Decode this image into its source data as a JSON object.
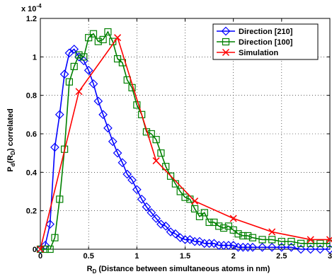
{
  "chart_data": {
    "type": "line",
    "title": "",
    "xlabel_main": "R",
    "xlabel_sub": "D",
    "xlabel_rest": " (Distance between simultaneous atoms in nm)",
    "ylabel_main": "P",
    "ylabel_sub1": "d",
    "ylabel_mid": "(R",
    "ylabel_sub2": "D",
    "ylabel_rest": ") correlated",
    "exponent_base": "x 10",
    "exponent_power": "-4",
    "xlim": [
      0,
      3
    ],
    "ylim": [
      0,
      1.2
    ],
    "xticks": [
      0,
      0.5,
      1,
      1.5,
      2,
      2.5,
      3
    ],
    "xtick_labels": [
      "0",
      "0.5",
      "1",
      "1.5",
      "2",
      "2.5",
      "3"
    ],
    "yticks": [
      0,
      0.2,
      0.4,
      0.6,
      0.8,
      1,
      1.2
    ],
    "ytick_labels": [
      "0",
      "0.2",
      "0.4",
      "0.6",
      "0.8",
      "1",
      "1.2"
    ],
    "grid": true,
    "legend_position": "top-right",
    "series": [
      {
        "name": "Direction [210]",
        "color": "#0000ff",
        "marker": "diamond",
        "x": [
          0.0,
          0.05,
          0.1,
          0.15,
          0.2,
          0.25,
          0.3,
          0.35,
          0.4,
          0.45,
          0.5,
          0.55,
          0.6,
          0.65,
          0.7,
          0.75,
          0.8,
          0.85,
          0.9,
          0.95,
          1.0,
          1.05,
          1.1,
          1.15,
          1.2,
          1.25,
          1.3,
          1.35,
          1.4,
          1.45,
          1.5,
          1.55,
          1.6,
          1.65,
          1.7,
          1.75,
          1.8,
          1.85,
          1.9,
          1.95,
          2.0,
          2.05,
          2.1,
          2.15,
          2.2,
          2.3,
          2.4,
          2.5,
          2.6,
          2.7,
          2.8,
          2.9,
          3.0
        ],
        "values": [
          0.0,
          0.02,
          0.13,
          0.53,
          0.7,
          0.91,
          1.02,
          1.04,
          1.0,
          0.98,
          0.93,
          0.86,
          0.77,
          0.7,
          0.63,
          0.56,
          0.5,
          0.45,
          0.39,
          0.36,
          0.31,
          0.26,
          0.22,
          0.19,
          0.16,
          0.13,
          0.12,
          0.09,
          0.08,
          0.06,
          0.05,
          0.05,
          0.04,
          0.04,
          0.03,
          0.03,
          0.03,
          0.02,
          0.02,
          0.02,
          0.02,
          0.01,
          0.01,
          0.01,
          0.01,
          0.01,
          0.01,
          0.01,
          0.01,
          0.0,
          0.0,
          0.0,
          0.0
        ]
      },
      {
        "name": "Direction [100]",
        "color": "#008000",
        "marker": "square",
        "x": [
          0.0,
          0.05,
          0.1,
          0.15,
          0.2,
          0.25,
          0.3,
          0.35,
          0.4,
          0.45,
          0.5,
          0.55,
          0.6,
          0.65,
          0.7,
          0.75,
          0.8,
          0.85,
          0.9,
          0.95,
          1.0,
          1.05,
          1.1,
          1.15,
          1.2,
          1.25,
          1.3,
          1.35,
          1.4,
          1.45,
          1.5,
          1.55,
          1.6,
          1.65,
          1.7,
          1.75,
          1.8,
          1.85,
          1.9,
          1.95,
          2.0,
          2.05,
          2.1,
          2.15,
          2.2,
          2.3,
          2.4,
          2.5,
          2.6,
          2.7,
          2.8,
          2.9,
          3.0
        ],
        "values": [
          0.0,
          0.0,
          0.0,
          0.06,
          0.26,
          0.52,
          0.87,
          0.95,
          1.01,
          1.0,
          1.1,
          1.12,
          1.08,
          1.09,
          1.13,
          1.08,
          0.99,
          0.97,
          0.88,
          0.84,
          0.75,
          0.7,
          0.61,
          0.6,
          0.57,
          0.5,
          0.43,
          0.38,
          0.34,
          0.3,
          0.27,
          0.26,
          0.21,
          0.17,
          0.19,
          0.14,
          0.14,
          0.12,
          0.11,
          0.12,
          0.1,
          0.08,
          0.07,
          0.07,
          0.06,
          0.05,
          0.05,
          0.04,
          0.04,
          0.03,
          0.03,
          0.03,
          0.03
        ]
      },
      {
        "name": "Simulation",
        "color": "#ff0000",
        "marker": "x",
        "x": [
          0.0,
          0.4,
          0.8,
          1.2,
          1.6,
          2.0,
          2.4,
          2.8,
          3.0
        ],
        "values": [
          0.0,
          0.82,
          1.1,
          0.46,
          0.25,
          0.16,
          0.09,
          0.05,
          0.05
        ]
      }
    ]
  }
}
